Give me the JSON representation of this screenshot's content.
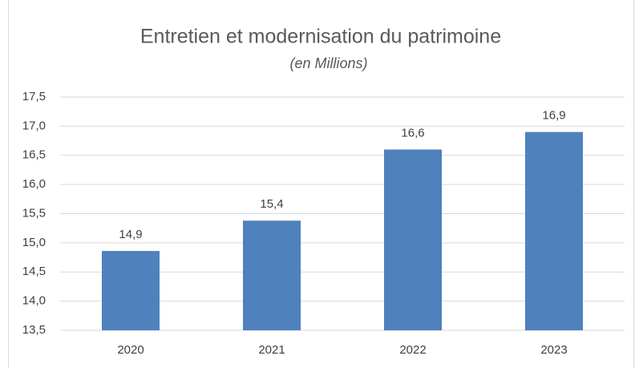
{
  "chart_data": {
    "type": "bar",
    "title": "Entretien et modernisation du patrimoine",
    "subtitle": "(en Millions)",
    "categories": [
      "2020",
      "2021",
      "2022",
      "2023"
    ],
    "values": [
      14.86,
      15.38,
      16.6,
      16.9
    ],
    "value_labels": [
      "14,9",
      "15,4",
      "16,6",
      "16,9"
    ],
    "color": "#4f81bd",
    "ylim": [
      13.5,
      17.5
    ],
    "yticks": [
      {
        "value": 13.5,
        "label": "13,5"
      },
      {
        "value": 14,
        "label": "14,0"
      },
      {
        "value": 14.5,
        "label": "14,5"
      },
      {
        "value": 15,
        "label": "15,0"
      },
      {
        "value": 15.5,
        "label": "15,5"
      },
      {
        "value": 16,
        "label": "16,0"
      },
      {
        "value": 16.5,
        "label": "16,5"
      },
      {
        "value": 17,
        "label": "17,0"
      },
      {
        "value": 17.5,
        "label": "17,5"
      }
    ],
    "grid": true
  }
}
